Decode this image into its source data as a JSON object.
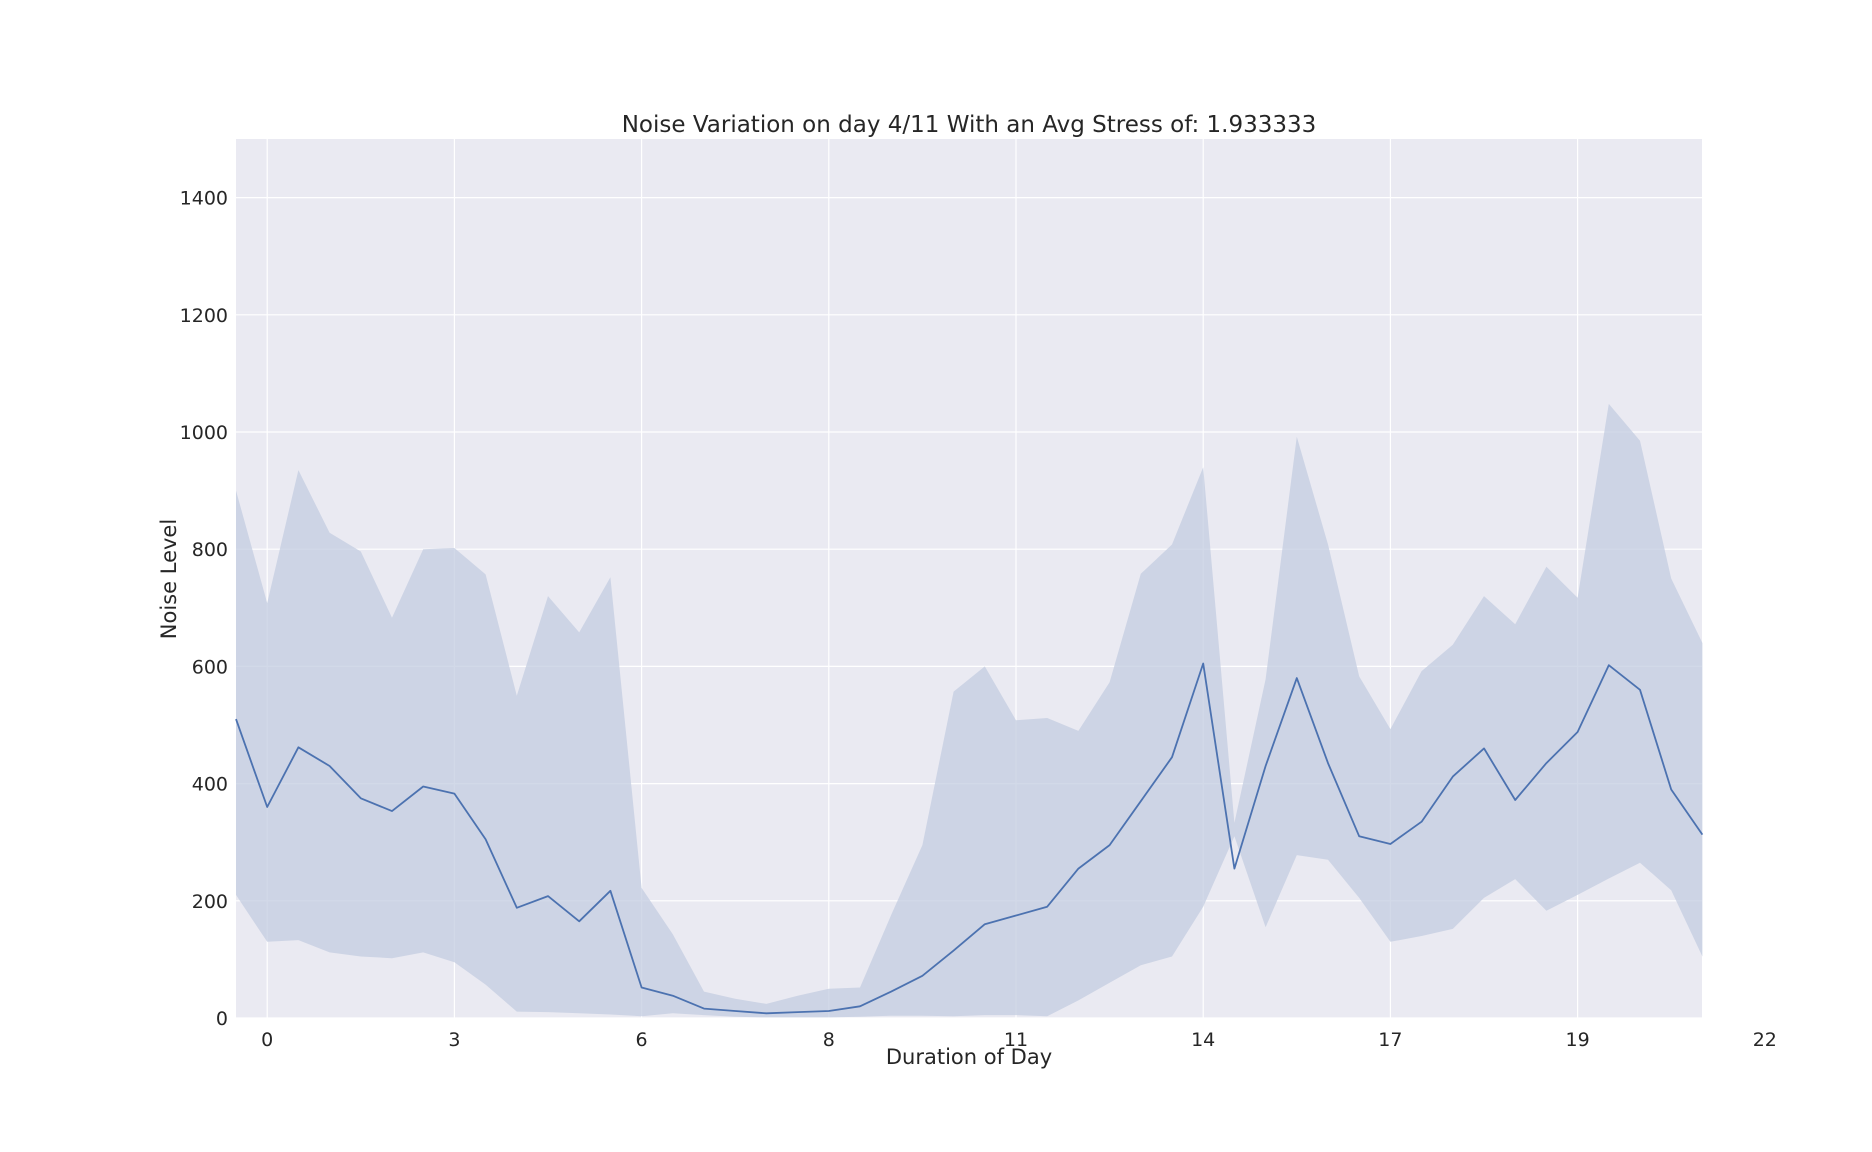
{
  "chart_data": {
    "type": "area",
    "title": "Noise Variation on day 4/11 With an Avg Stress of: 1.933333",
    "xlabel": "Duration of Day",
    "ylabel": "Noise Level",
    "ylim": [
      0,
      1500
    ],
    "y_ticks": [
      0,
      200,
      400,
      600,
      800,
      1000,
      1200,
      1400
    ],
    "x_tick_labels": [
      "0",
      "3",
      "6",
      "8",
      "11",
      "14",
      "17",
      "19",
      "22"
    ],
    "grid": true,
    "legend": "none",
    "colors": {
      "background": "#eaeaf2",
      "line": "#4c72b0",
      "band": "#c3cce0"
    },
    "series": [
      {
        "mean": [
          510,
          360,
          462,
          430,
          375,
          353,
          395,
          383,
          305,
          188,
          208,
          165,
          217,
          52,
          38,
          16,
          12,
          8,
          10,
          12,
          20,
          45,
          72,
          115,
          160,
          175,
          190,
          255,
          295,
          370,
          445,
          605,
          255,
          430,
          580,
          435,
          310,
          297,
          335,
          412,
          460,
          372,
          435,
          488,
          602,
          560,
          390,
          313
        ],
        "upper": [
          900,
          708,
          935,
          828,
          796,
          683,
          800,
          802,
          757,
          550,
          720,
          658,
          752,
          222,
          143,
          45,
          33,
          24,
          38,
          50,
          52,
          176,
          295,
          557,
          600,
          508,
          512,
          490,
          573,
          758,
          808,
          940,
          333,
          578,
          992,
          808,
          583,
          493,
          592,
          637,
          720,
          672,
          770,
          717,
          1048,
          985,
          750,
          640
        ],
        "lower": [
          210,
          130,
          133,
          112,
          105,
          102,
          112,
          95,
          57,
          11,
          10,
          8,
          6,
          3,
          8,
          5,
          2,
          1,
          1,
          1,
          2,
          4,
          4,
          3,
          5,
          5,
          3,
          30,
          60,
          90,
          105,
          190,
          310,
          155,
          278,
          270,
          205,
          130,
          140,
          152,
          205,
          237,
          183,
          210,
          238,
          265,
          218,
          105
        ]
      }
    ]
  }
}
